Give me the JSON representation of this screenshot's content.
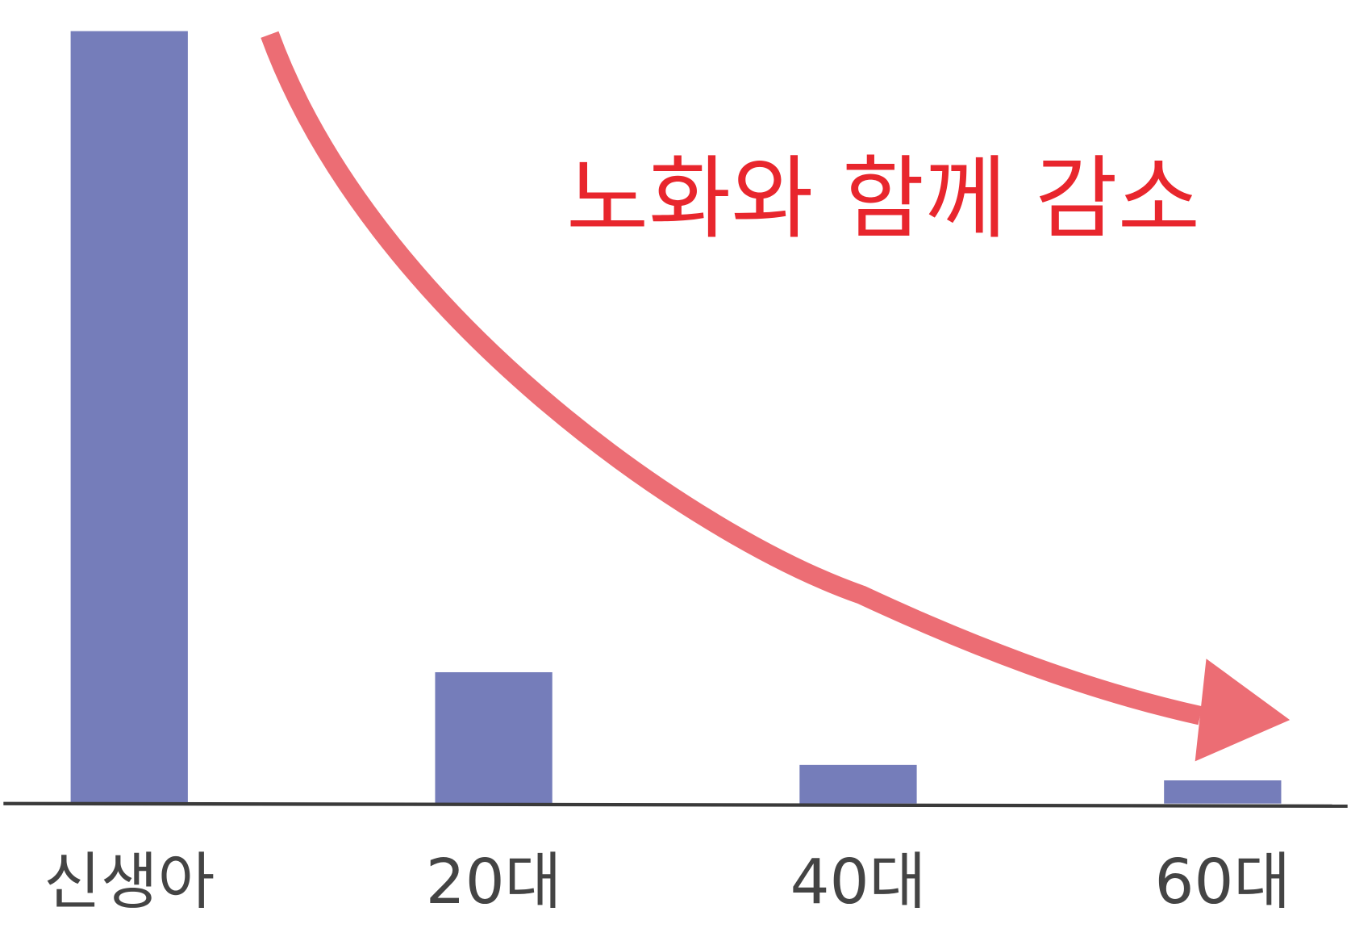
{
  "chart_data": {
    "type": "bar",
    "annotation": "노화와 함께 감소",
    "categories": [
      "신생아",
      "20대",
      "40대",
      "60대"
    ],
    "values": [
      100,
      17,
      5,
      3
    ],
    "color": "#757dba",
    "ylim": [
      0,
      100
    ]
  }
}
